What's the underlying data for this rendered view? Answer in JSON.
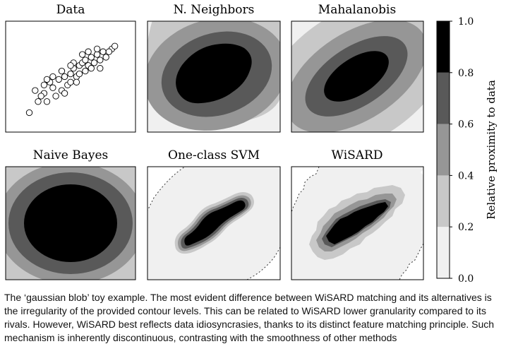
{
  "chart_data": {
    "type": "heatmap",
    "subtype": "contour-panel-grid",
    "panels": [
      {
        "title": "Data",
        "kind": "scatter"
      },
      {
        "title": "N. Neighbors",
        "kind": "contour"
      },
      {
        "title": "Mahalanobis",
        "kind": "contour"
      },
      {
        "title": "Naive Bayes",
        "kind": "contour"
      },
      {
        "title": "One-class SVM",
        "kind": "contour"
      },
      {
        "title": "WiSARD",
        "kind": "contour"
      }
    ],
    "colorbar": {
      "label": "Relative proximity to data",
      "ticks": [
        "1.0",
        "0.8",
        "0.6",
        "0.4",
        "0.2",
        "0.0"
      ],
      "range": [
        0,
        1
      ],
      "levels": [
        {
          "from": 0.0,
          "to": 0.2,
          "color": "#f0f0f0"
        },
        {
          "from": 0.2,
          "to": 0.4,
          "color": "#c8c8c8"
        },
        {
          "from": 0.4,
          "to": 0.6,
          "color": "#969696"
        },
        {
          "from": 0.6,
          "to": 0.8,
          "color": "#595959"
        },
        {
          "from": 0.8,
          "to": 1.0,
          "color": "#000000"
        }
      ]
    },
    "scatter_points": [
      [
        -1.4,
        -1.3
      ],
      [
        -1.1,
        -0.9
      ],
      [
        -0.9,
        -0.6
      ],
      [
        -1.2,
        -0.5
      ],
      [
        -0.8,
        -0.9
      ],
      [
        -0.6,
        -0.4
      ],
      [
        -0.5,
        -0.7
      ],
      [
        -0.7,
        -0.2
      ],
      [
        -0.4,
        -0.1
      ],
      [
        -0.3,
        -0.5
      ],
      [
        -0.2,
        0.0
      ],
      [
        -0.1,
        -0.3
      ],
      [
        0.0,
        0.1
      ],
      [
        0.0,
        -0.2
      ],
      [
        0.1,
        0.3
      ],
      [
        0.2,
        0.0
      ],
      [
        0.3,
        0.4
      ],
      [
        0.3,
        0.1
      ],
      [
        0.4,
        0.5
      ],
      [
        0.5,
        0.2
      ],
      [
        0.5,
        0.6
      ],
      [
        0.6,
        0.4
      ],
      [
        0.7,
        0.7
      ],
      [
        0.8,
        0.5
      ],
      [
        0.9,
        0.8
      ],
      [
        1.0,
        0.6
      ],
      [
        1.1,
        0.9
      ],
      [
        1.2,
        0.7
      ],
      [
        1.4,
        1.0
      ],
      [
        1.5,
        1.1
      ],
      [
        -0.9,
        -0.3
      ],
      [
        -0.6,
        0.0
      ],
      [
        -0.3,
        0.2
      ],
      [
        0.1,
        0.5
      ],
      [
        0.4,
        0.8
      ],
      [
        0.7,
        0.3
      ],
      [
        1.0,
        0.3
      ],
      [
        -0.2,
        -0.6
      ],
      [
        0.2,
        -0.2
      ],
      [
        0.6,
        0.9
      ],
      [
        -0.8,
        -0.1
      ],
      [
        0.9,
        1.0
      ],
      [
        1.3,
        0.9
      ],
      [
        -1.0,
        -0.7
      ],
      [
        0.0,
        0.4
      ]
    ]
  },
  "caption": "The ‘gaussian blob’ toy example. The most evident difference between WiSARD matching and its alternatives is the irregularity of the provided contour levels. This can be related to WiSARD lower granularity compared to its rivals. However, WiSARD best reflects data idiosyncrasies, thanks to its distinct feature matching principle. Such mechanism is inherently discontinuous, contrasting with the smoothness of other methods"
}
